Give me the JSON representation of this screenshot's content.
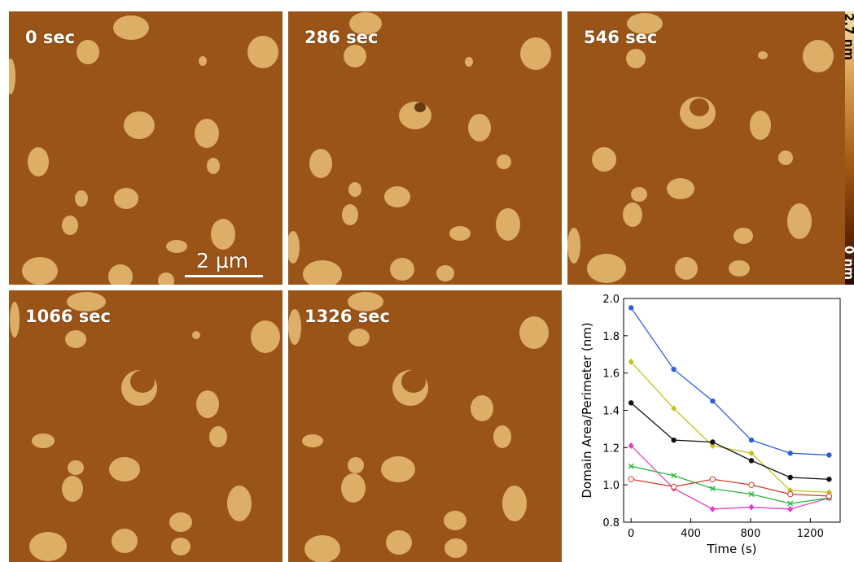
{
  "panels": [
    {
      "time": "0 sec"
    },
    {
      "time": "286 sec"
    },
    {
      "time": "546 sec"
    },
    {
      "time": "1066 sec"
    },
    {
      "time": "1326 sec"
    }
  ],
  "scale_bar": {
    "label": "2 μm"
  },
  "colorbar": {
    "top_label": "2.7 nm",
    "bottom_label": "0 nm"
  },
  "colors": {
    "afm_background": "#9a5418",
    "domain": "#dcae66"
  },
  "chart_data": {
    "type": "line",
    "xlabel": "Time (s)",
    "ylabel": "Domain Area/Perimeter (nm)",
    "xlim": [
      -50,
      1400
    ],
    "ylim": [
      0.8,
      2.0
    ],
    "xticks": [
      0,
      400,
      800,
      1200
    ],
    "yticks": [
      0.8,
      1.0,
      1.2,
      1.4,
      1.6,
      1.8,
      2.0
    ],
    "x": [
      0,
      286,
      546,
      806,
      1066,
      1326
    ],
    "series": [
      {
        "color": "#2e5fdc",
        "marker": "circle",
        "values": [
          1.95,
          1.62,
          1.45,
          1.24,
          1.17,
          1.16
        ]
      },
      {
        "color": "#c4c21a",
        "marker": "diamond",
        "values": [
          1.66,
          1.41,
          1.21,
          1.17,
          0.97,
          0.96
        ]
      },
      {
        "color": "#111111",
        "marker": "circle",
        "values": [
          1.44,
          1.24,
          1.23,
          1.13,
          1.04,
          1.03
        ]
      },
      {
        "color": "#e040c8",
        "marker": "diamond",
        "values": [
          1.21,
          0.98,
          0.87,
          0.88,
          0.87,
          0.93
        ]
      },
      {
        "color": "#22b83a",
        "marker": "x",
        "values": [
          1.1,
          1.05,
          0.98,
          0.95,
          0.9,
          0.93
        ]
      },
      {
        "color": "#d33a2c",
        "marker": "open-circle",
        "values": [
          1.03,
          0.99,
          1.03,
          1.0,
          0.95,
          0.94
        ]
      }
    ]
  }
}
